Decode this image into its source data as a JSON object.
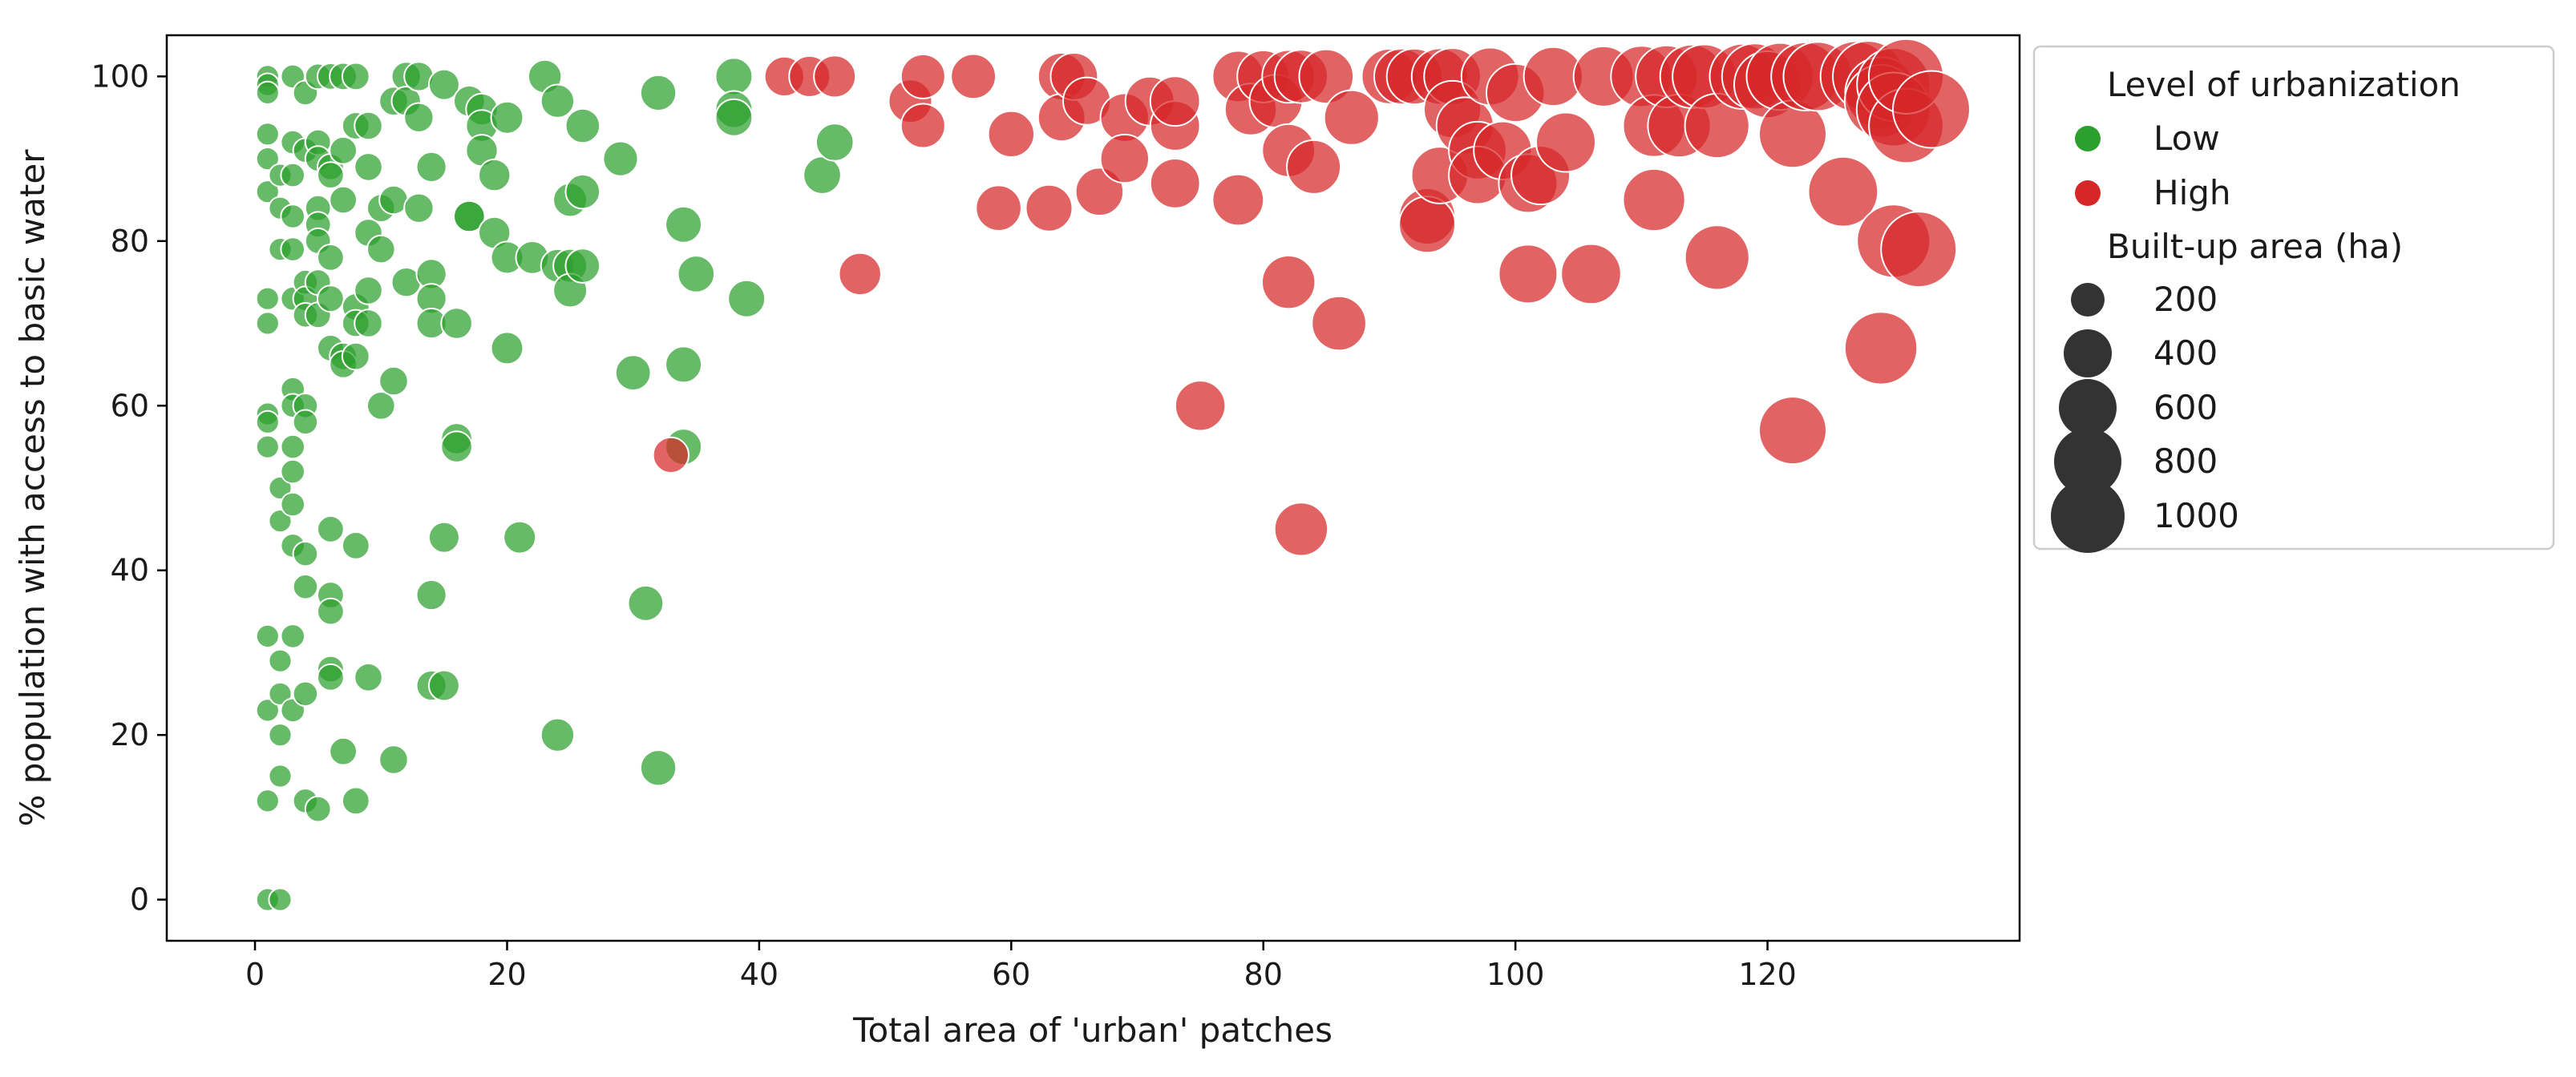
{
  "colors": {
    "low": "#2ca02c",
    "high": "#d62728",
    "size_marker": "#333333",
    "axes": "#000000"
  },
  "chart_data": {
    "type": "scatter",
    "xlabel": "Total area of 'urban' patches",
    "ylabel": "% population with access to basic water",
    "xlim": [
      -7,
      140
    ],
    "ylim": [
      -5,
      105
    ],
    "xticks": [
      0,
      20,
      40,
      60,
      80,
      100,
      120
    ],
    "yticks": [
      0,
      20,
      40,
      60,
      80,
      100
    ],
    "grid": false,
    "legend_position": "outside-right",
    "legend": {
      "hue_title": "Level of urbanization",
      "hue_entries": [
        {
          "label": "Low",
          "color": "#2ca02c"
        },
        {
          "label": "High",
          "color": "#d62728"
        }
      ],
      "size_title": "Built-up area (ha)",
      "size_entries": [
        {
          "label": "200",
          "value": 200
        },
        {
          "label": "400",
          "value": 400
        },
        {
          "label": "600",
          "value": 600
        },
        {
          "label": "800",
          "value": 800
        },
        {
          "label": "1000",
          "value": 1000
        }
      ]
    },
    "series": [
      {
        "name": "Low",
        "color": "#2ca02c",
        "points": [
          [
            1,
            100,
            20
          ],
          [
            1,
            99,
            20
          ],
          [
            1,
            98,
            20
          ],
          [
            1,
            93,
            20
          ],
          [
            1,
            90,
            20
          ],
          [
            1,
            86,
            20
          ],
          [
            1,
            73,
            20
          ],
          [
            1,
            70,
            20
          ],
          [
            1,
            59,
            20
          ],
          [
            1,
            58,
            20
          ],
          [
            1,
            55,
            20
          ],
          [
            1,
            32,
            20
          ],
          [
            1,
            23,
            20
          ],
          [
            1,
            12,
            20
          ],
          [
            1,
            0,
            20
          ],
          [
            2,
            0,
            20
          ],
          [
            2,
            88,
            20
          ],
          [
            2,
            84,
            20
          ],
          [
            2,
            79,
            20
          ],
          [
            2,
            50,
            20
          ],
          [
            2,
            46,
            20
          ],
          [
            2,
            29,
            20
          ],
          [
            2,
            25,
            20
          ],
          [
            2,
            20,
            20
          ],
          [
            2,
            15,
            20
          ],
          [
            3,
            100,
            25
          ],
          [
            3,
            92,
            25
          ],
          [
            3,
            88,
            25
          ],
          [
            3,
            83,
            25
          ],
          [
            3,
            79,
            25
          ],
          [
            3,
            73,
            25
          ],
          [
            3,
            62,
            25
          ],
          [
            3,
            60,
            25
          ],
          [
            3,
            55,
            25
          ],
          [
            3,
            52,
            25
          ],
          [
            3,
            48,
            25
          ],
          [
            3,
            43,
            25
          ],
          [
            3,
            32,
            25
          ],
          [
            3,
            23,
            25
          ],
          [
            4,
            98,
            30
          ],
          [
            4,
            91,
            30
          ],
          [
            4,
            75,
            30
          ],
          [
            4,
            73,
            30
          ],
          [
            4,
            71,
            30
          ],
          [
            4,
            60,
            30
          ],
          [
            4,
            58,
            30
          ],
          [
            4,
            42,
            30
          ],
          [
            4,
            38,
            30
          ],
          [
            4,
            25,
            30
          ],
          [
            4,
            12,
            30
          ],
          [
            5,
            100,
            35
          ],
          [
            5,
            92,
            35
          ],
          [
            5,
            90,
            35
          ],
          [
            5,
            84,
            35
          ],
          [
            5,
            82,
            35
          ],
          [
            5,
            80,
            35
          ],
          [
            5,
            75,
            35
          ],
          [
            5,
            71,
            35
          ],
          [
            5,
            11,
            35
          ],
          [
            6,
            100,
            40
          ],
          [
            6,
            89,
            40
          ],
          [
            6,
            88,
            40
          ],
          [
            6,
            78,
            40
          ],
          [
            6,
            73,
            40
          ],
          [
            6,
            67,
            40
          ],
          [
            6,
            45,
            40
          ],
          [
            6,
            37,
            40
          ],
          [
            6,
            35,
            40
          ],
          [
            6,
            28,
            40
          ],
          [
            6,
            27,
            40
          ],
          [
            7,
            100,
            45
          ],
          [
            7,
            91,
            45
          ],
          [
            7,
            85,
            45
          ],
          [
            7,
            66,
            45
          ],
          [
            7,
            65,
            45
          ],
          [
            7,
            18,
            45
          ],
          [
            8,
            100,
            45
          ],
          [
            8,
            94,
            45
          ],
          [
            8,
            72,
            45
          ],
          [
            8,
            70,
            45
          ],
          [
            8,
            66,
            45
          ],
          [
            8,
            43,
            45
          ],
          [
            8,
            12,
            45
          ],
          [
            9,
            94,
            50
          ],
          [
            9,
            89,
            50
          ],
          [
            9,
            81,
            50
          ],
          [
            9,
            74,
            50
          ],
          [
            9,
            70,
            50
          ],
          [
            9,
            27,
            50
          ],
          [
            10,
            84,
            50
          ],
          [
            10,
            79,
            50
          ],
          [
            10,
            60,
            50
          ],
          [
            11,
            97,
            55
          ],
          [
            11,
            85,
            55
          ],
          [
            11,
            63,
            55
          ],
          [
            11,
            17,
            55
          ],
          [
            12,
            100,
            60
          ],
          [
            12,
            97,
            60
          ],
          [
            12,
            75,
            60
          ],
          [
            13,
            100,
            60
          ],
          [
            13,
            95,
            60
          ],
          [
            13,
            84,
            60
          ],
          [
            14,
            89,
            65
          ],
          [
            14,
            76,
            65
          ],
          [
            14,
            73,
            65
          ],
          [
            14,
            70,
            65
          ],
          [
            14,
            37,
            65
          ],
          [
            14,
            26,
            65
          ],
          [
            15,
            99,
            70
          ],
          [
            15,
            44,
            70
          ],
          [
            15,
            26,
            70
          ],
          [
            16,
            70,
            75
          ],
          [
            16,
            56,
            75
          ],
          [
            16,
            55,
            75
          ],
          [
            17,
            97,
            75
          ],
          [
            17,
            83,
            75
          ],
          [
            17,
            83,
            75
          ],
          [
            18,
            96,
            80
          ],
          [
            18,
            94,
            80
          ],
          [
            18,
            91,
            80
          ],
          [
            19,
            88,
            80
          ],
          [
            19,
            81,
            80
          ],
          [
            20,
            95,
            85
          ],
          [
            20,
            78,
            85
          ],
          [
            20,
            67,
            85
          ],
          [
            21,
            44,
            85
          ],
          [
            22,
            78,
            90
          ],
          [
            23,
            100,
            95
          ],
          [
            24,
            97,
            95
          ],
          [
            24,
            77,
            95
          ],
          [
            24,
            20,
            95
          ],
          [
            25,
            85,
            100
          ],
          [
            25,
            77,
            100
          ],
          [
            25,
            74,
            100
          ],
          [
            26,
            94,
            105
          ],
          [
            26,
            86,
            105
          ],
          [
            26,
            77,
            105
          ],
          [
            29,
            90,
            110
          ],
          [
            30,
            64,
            115
          ],
          [
            31,
            36,
            115
          ],
          [
            32,
            98,
            120
          ],
          [
            32,
            16,
            120
          ],
          [
            34,
            82,
            125
          ],
          [
            34,
            65,
            125
          ],
          [
            34,
            55,
            125
          ],
          [
            35,
            76,
            130
          ],
          [
            38,
            100,
            135
          ],
          [
            38,
            96,
            135
          ],
          [
            38,
            95,
            135
          ],
          [
            39,
            73,
            135
          ],
          [
            45,
            88,
            140
          ],
          [
            46,
            92,
            140
          ]
        ]
      },
      {
        "name": "High",
        "color": "#d62728",
        "points": [
          [
            33,
            54,
            120
          ],
          [
            42,
            100,
            165
          ],
          [
            44,
            100,
            185
          ],
          [
            46,
            100,
            195
          ],
          [
            48,
            76,
            200
          ],
          [
            52,
            97,
            220
          ],
          [
            53,
            100,
            230
          ],
          [
            53,
            94,
            230
          ],
          [
            57,
            100,
            240
          ],
          [
            59,
            84,
            250
          ],
          [
            60,
            93,
            260
          ],
          [
            63,
            84,
            270
          ],
          [
            64,
            100,
            280
          ],
          [
            64,
            95,
            280
          ],
          [
            65,
            100,
            280
          ],
          [
            66,
            97,
            285
          ],
          [
            67,
            86,
            290
          ],
          [
            69,
            95,
            300
          ],
          [
            69,
            90,
            300
          ],
          [
            71,
            97,
            310
          ],
          [
            73,
            94,
            320
          ],
          [
            73,
            97,
            320
          ],
          [
            73,
            87,
            320
          ],
          [
            75,
            60,
            330
          ],
          [
            78,
            100,
            350
          ],
          [
            78,
            85,
            350
          ],
          [
            79,
            96,
            360
          ],
          [
            80,
            100,
            370
          ],
          [
            81,
            97,
            380
          ],
          [
            82,
            100,
            380
          ],
          [
            82,
            91,
            380
          ],
          [
            82,
            75,
            390
          ],
          [
            83,
            100,
            390
          ],
          [
            83,
            45,
            390
          ],
          [
            84,
            89,
            400
          ],
          [
            85,
            100,
            410
          ],
          [
            86,
            70,
            410
          ],
          [
            87,
            95,
            420
          ],
          [
            90,
            100,
            430
          ],
          [
            91,
            100,
            440
          ],
          [
            92,
            100,
            440
          ],
          [
            93,
            83,
            450
          ],
          [
            93,
            82,
            450
          ],
          [
            94,
            100,
            450
          ],
          [
            94,
            88,
            460
          ],
          [
            95,
            100,
            460
          ],
          [
            95,
            96,
            470
          ],
          [
            96,
            94,
            470
          ],
          [
            97,
            91,
            480
          ],
          [
            97,
            88,
            480
          ],
          [
            98,
            100,
            480
          ],
          [
            99,
            91,
            490
          ],
          [
            100,
            98,
            490
          ],
          [
            101,
            87,
            500
          ],
          [
            101,
            76,
            500
          ],
          [
            102,
            88,
            500
          ],
          [
            103,
            100,
            510
          ],
          [
            104,
            92,
            520
          ],
          [
            106,
            76,
            530
          ],
          [
            107,
            100,
            540
          ],
          [
            110,
            100,
            560
          ],
          [
            111,
            94,
            580
          ],
          [
            111,
            85,
            580
          ],
          [
            112,
            100,
            580
          ],
          [
            113,
            94,
            600
          ],
          [
            114,
            100,
            620
          ],
          [
            115,
            100,
            630
          ],
          [
            116,
            94,
            640
          ],
          [
            116,
            78,
            640
          ],
          [
            118,
            100,
            660
          ],
          [
            119,
            100,
            680
          ],
          [
            120,
            99,
            700
          ],
          [
            121,
            100,
            710
          ],
          [
            122,
            93,
            720
          ],
          [
            122,
            57,
            720
          ],
          [
            123,
            100,
            740
          ],
          [
            124,
            100,
            760
          ],
          [
            126,
            86,
            780
          ],
          [
            127,
            100,
            800
          ],
          [
            128,
            100,
            820
          ],
          [
            129,
            98,
            840
          ],
          [
            129,
            97,
            860
          ],
          [
            129,
            67,
            860
          ],
          [
            130,
            99,
            880
          ],
          [
            130,
            80,
            880
          ],
          [
            130,
            96,
            900
          ],
          [
            131,
            94,
            920
          ],
          [
            131,
            100,
            930
          ],
          [
            132,
            79,
            950
          ],
          [
            133,
            96,
            1000
          ]
        ]
      }
    ]
  }
}
